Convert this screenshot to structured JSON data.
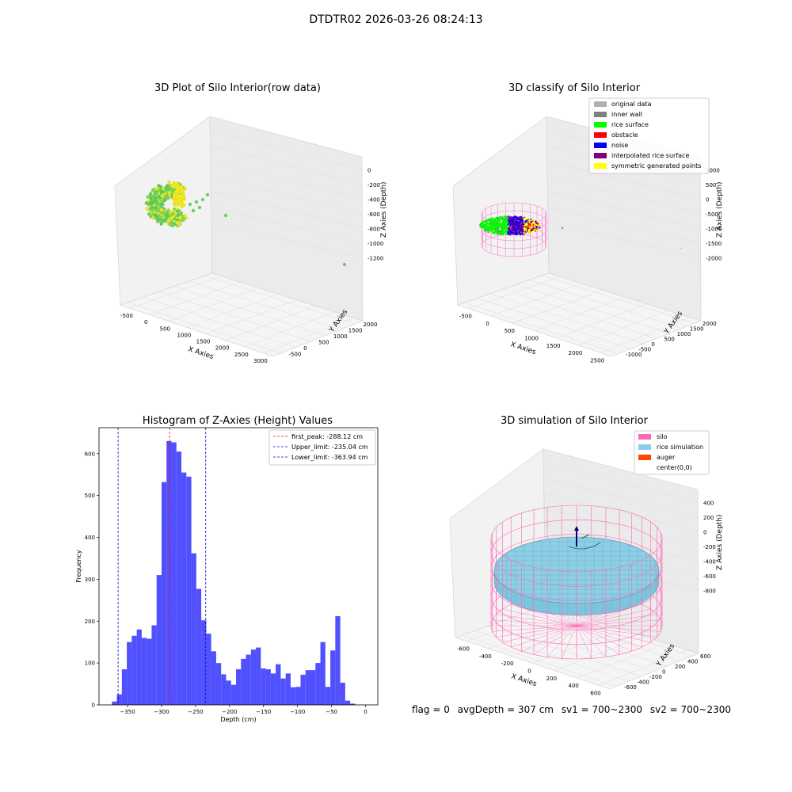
{
  "suptitle": "DTDTR02 2026-03-26 08:24:13",
  "plots": {
    "raw": {
      "title": "3D Plot of Silo Interior(row data)",
      "xlabel": "X Axies",
      "ylabel": "Y Axies",
      "zlabel": "Z Axies (Depth)",
      "xticks": [
        "-500",
        "0",
        "500",
        "1000",
        "1500",
        "2000",
        "2500",
        "3000"
      ],
      "yticks": [
        "-500",
        "0",
        "500",
        "1000",
        "1500",
        "2000"
      ],
      "zticks": [
        "0",
        "-200",
        "-400",
        "-600",
        "-800",
        "-1000",
        "-1200"
      ]
    },
    "classify": {
      "title": "3D classify of Silo Interior",
      "xlabel": "X Axies",
      "ylabel": "Y Axies",
      "zlabel": "Z Axies (Depth)",
      "xticks": [
        "-500",
        "0",
        "500",
        "1000",
        "1500",
        "2000",
        "2500"
      ],
      "yticks": [
        "-1000",
        "-500",
        "0",
        "500",
        "1000",
        "1500",
        "2000"
      ],
      "zticks": [
        "1000",
        "500",
        "0",
        "-500",
        "-1000",
        "-1500",
        "-2000"
      ],
      "legend": [
        {
          "label": "original data",
          "color": "#b0b0b0"
        },
        {
          "label": "inner wall",
          "color": "#808080"
        },
        {
          "label": "rice surface",
          "color": "#00ff00"
        },
        {
          "label": "obstacle",
          "color": "#ff0000"
        },
        {
          "label": "noise",
          "color": "#0000ff"
        },
        {
          "label": "interpolated rice surface",
          "color": "#800080"
        },
        {
          "label": "symmetric generated points",
          "color": "#ffff00"
        }
      ]
    },
    "simulation": {
      "title": "3D simulation of Silo Interior",
      "xlabel": "X Axies",
      "ylabel": "Y Axies",
      "zlabel": "Z Axies (Depth)",
      "xticks": [
        "-600",
        "-400",
        "-200",
        "0",
        "200",
        "400",
        "600"
      ],
      "yticks": [
        "-600",
        "-400",
        "-200",
        "0",
        "200",
        "400",
        "600"
      ],
      "zticks": [
        "400",
        "200",
        "0",
        "-200",
        "-400",
        "-600",
        "-800"
      ],
      "legend": [
        {
          "label": "silo",
          "color": "#ff69b4"
        },
        {
          "label": "rice simulation",
          "color": "#87ceeb"
        },
        {
          "label": "auger",
          "color": "#ff4500"
        },
        {
          "label": "center(0,0)",
          "color": "#ffffff"
        }
      ]
    }
  },
  "chart_data": {
    "type": "bar",
    "title": "Histogram of Z-Axies (Height) Values",
    "xlabel": "Depth (cm)",
    "ylabel": "Frequency",
    "xlim": [
      -392,
      18
    ],
    "ylim": [
      0,
      662
    ],
    "xticks": [
      -350,
      -300,
      -250,
      -200,
      -150,
      -100,
      -50,
      0
    ],
    "yticks": [
      0,
      100,
      200,
      300,
      400,
      500,
      600
    ],
    "bar_color": "#5050ff",
    "bin_start": -373,
    "bin_width": 7.3,
    "values": [
      8,
      25,
      85,
      150,
      165,
      180,
      160,
      158,
      190,
      310,
      532,
      630,
      627,
      605,
      555,
      545,
      362,
      277,
      202,
      170,
      128,
      100,
      73,
      58,
      48,
      85,
      110,
      120,
      132,
      137,
      87,
      85,
      75,
      97,
      63,
      75,
      42,
      43,
      72,
      83,
      83,
      100,
      150,
      43,
      130,
      212,
      53,
      10,
      3
    ],
    "vlines": [
      {
        "label": "first_peak: -288.12 cm",
        "x": -288.12,
        "color": "#ff0000"
      },
      {
        "label": "Upper_limit: -235.04 cm",
        "x": -235.04,
        "color": "#0000cc"
      },
      {
        "label": "Lower_limit: -363.94 cm",
        "x": -363.94,
        "color": "#0000cc"
      }
    ]
  },
  "footer": {
    "flag": "flag = 0",
    "avg_depth": "avgDepth = 307 cm",
    "sv1": "sv1 = 700~2300",
    "sv2": "sv2 = 700~2300"
  }
}
